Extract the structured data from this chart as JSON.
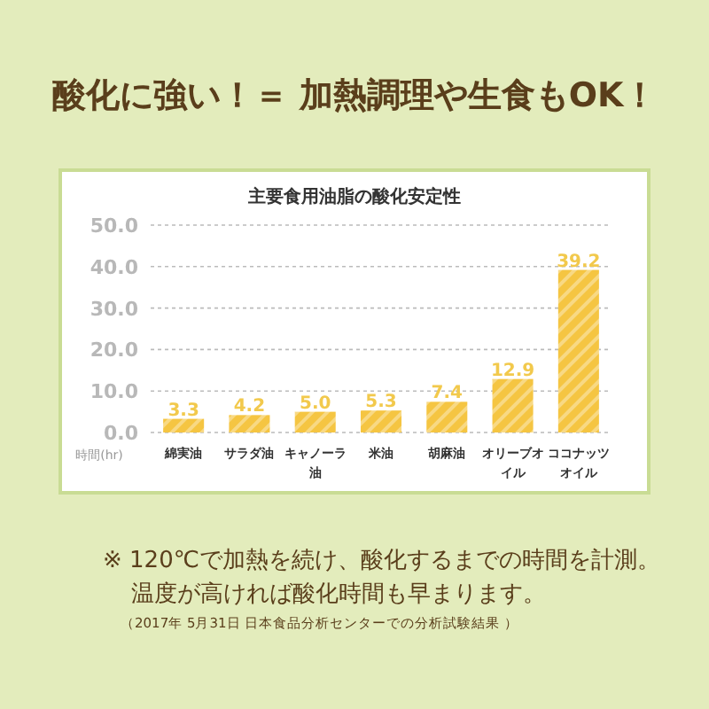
{
  "chart_data": {
    "type": "bar",
    "title": "酸化に強い！＝ 加熱調理や生食もOK！",
    "subtitle": "主要食用油脂の酸化安定性",
    "ylabel": "時間(hr)",
    "categories": [
      "綿実油",
      "サラダ油",
      "キャノーラ油",
      "米油",
      "胡麻油",
      "オリーブオイル",
      "ココナッツオイル"
    ],
    "values": [
      3.3,
      4.2,
      5.0,
      5.3,
      7.4,
      12.9,
      39.2
    ],
    "value_labels": [
      "3.3",
      "4.2",
      "5.0",
      "5.3",
      "7.4",
      "12.9",
      "39.2"
    ],
    "color": "#f5c542",
    "grid": "y",
    "ylim": [
      0,
      50
    ],
    "yticks": [
      {
        "value": 0,
        "label": "0.0"
      },
      {
        "value": 10,
        "label": "10.0"
      },
      {
        "value": 20,
        "label": "20.0"
      },
      {
        "value": 30,
        "label": "30.0"
      },
      {
        "value": 40,
        "label": "40.0"
      },
      {
        "value": 50,
        "label": "50.0"
      }
    ],
    "annotations": [
      "※ 120℃で加熱を続け、酸化するまでの時間を計測。",
      "温度が高ければ酸化時間も早まります。",
      "（2017年 5月31日 日本食品分析センターでの分析試験結果 ）"
    ]
  }
}
